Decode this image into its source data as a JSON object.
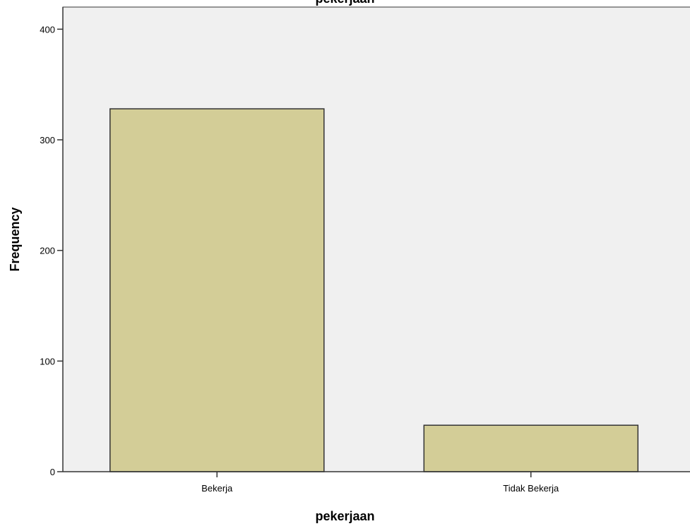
{
  "chart_data": {
    "type": "bar",
    "title": "pekerjaan",
    "xlabel": "pekerjaan",
    "ylabel": "Frequency",
    "categories": [
      "Bekerja",
      "Tidak Bekerja"
    ],
    "values": [
      328,
      42
    ],
    "ylim": [
      0,
      420
    ],
    "yticks": [
      0,
      100,
      200,
      300,
      400
    ],
    "grid": false,
    "legend": "none",
    "colors": {
      "bar_fill": "#d3cd97",
      "bar_stroke": "#333333",
      "plot_background": "#f0f0f0",
      "axis": "#333333"
    }
  }
}
